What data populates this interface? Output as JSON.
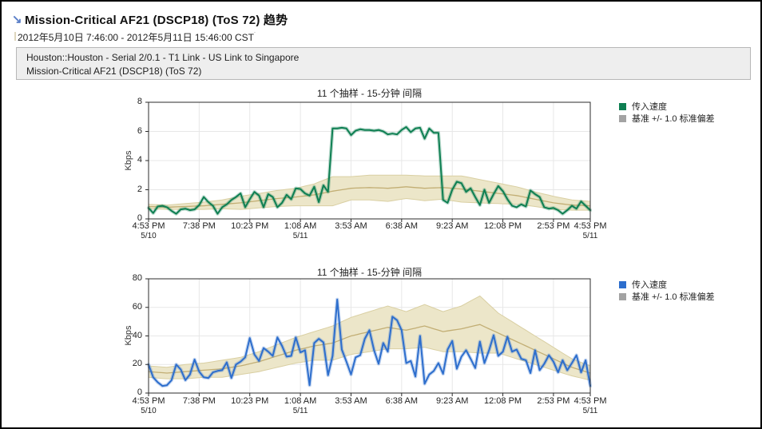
{
  "window": {
    "background": "#ffffff",
    "border_color": "#000000"
  },
  "header": {
    "arrow_icon": "↘",
    "title": "Mission-Critical AF21 (DSCP18) (ToS 72) 趋势",
    "date_range": "2012年5月10日 7:46:00 - 2012年5月11日 15:46:00 CST",
    "date_range_superscript": "˙",
    "source_line1": "Houston::Houston - Serial 2/0.1 - T1 Link - US Link to Singapore",
    "source_line2": "Mission-Critical AF21 (DSCP18) (ToS 72)"
  },
  "colors": {
    "green_line": "#0e7f52",
    "blue_line": "#2d6ecd",
    "baseline_band_fill": "#ece6c9",
    "baseline_band_edge": "#d9cfa2",
    "baseline_mid_line": "#c2ae74",
    "legend_gray": "#a3a3a3",
    "grid": "#e7e7e7",
    "axis": "#2b2b2b"
  },
  "chart_data": [
    {
      "type": "line",
      "title": "11 个抽样 - 15-分钟 间隔",
      "ylabel": "Kbps",
      "ylim": [
        0,
        8
      ],
      "y_ticks": [
        0,
        2,
        4,
        6,
        8
      ],
      "total_minutes": 1440,
      "sample_interval_minutes": 15,
      "x_ticks": {
        "minutes": [
          0,
          165,
          330,
          495,
          660,
          825,
          990,
          1155,
          1320,
          1440
        ],
        "labels": [
          "4:53 PM",
          "7:38 PM",
          "10:23 PM",
          "1:08 AM",
          "3:53 AM",
          "6:38 AM",
          "9:23 AM",
          "12:08 PM",
          "2:53 PM",
          "4:53 PM"
        ],
        "dates": [
          "5/10",
          "",
          "",
          "5/11",
          "",
          "",
          "",
          "",
          "",
          "5/11"
        ]
      },
      "legend": [
        {
          "label": "传入速度",
          "color": "#0e7f52"
        },
        {
          "label": "基准 +/- 1.0 标准偏差",
          "color": "#a3a3a3"
        }
      ],
      "series": [
        {
          "name": "传入速度",
          "color": "#0e7f52",
          "unit": "Kbps",
          "values": [
            0.75,
            0.4,
            0.85,
            0.9,
            0.8,
            0.55,
            0.35,
            0.65,
            0.7,
            0.6,
            0.65,
            0.95,
            1.5,
            1.15,
            0.9,
            0.35,
            0.8,
            1.0,
            1.3,
            1.5,
            1.75,
            0.8,
            1.35,
            1.85,
            1.6,
            0.8,
            1.7,
            1.5,
            0.8,
            1.1,
            1.65,
            1.35,
            2.1,
            2.05,
            1.75,
            1.6,
            2.2,
            1.15,
            2.3,
            1.85,
            6.2,
            6.2,
            6.25,
            6.2,
            5.75,
            6.05,
            6.15,
            6.1,
            6.1,
            6.05,
            6.1,
            6.0,
            5.8,
            5.85,
            5.8,
            6.1,
            6.3,
            5.95,
            6.2,
            6.25,
            5.5,
            6.2,
            5.9,
            5.9,
            1.3,
            1.1,
            2.0,
            2.55,
            2.45,
            1.85,
            2.1,
            1.5,
            0.95,
            2.0,
            1.1,
            1.7,
            2.25,
            1.9,
            1.35,
            0.9,
            0.8,
            1.0,
            0.85,
            1.95,
            1.7,
            1.5,
            0.8,
            0.7,
            0.75,
            0.6,
            0.35,
            0.6,
            0.9,
            0.7,
            1.2,
            0.9,
            0.6
          ]
        }
      ],
      "baseline": {
        "name": "基准",
        "sigma_multiplier": 1.0,
        "mid": [
          0.85,
          0.8,
          0.85,
          0.9,
          1.0,
          1.1,
          1.25,
          1.4,
          1.5,
          1.65,
          1.9,
          2.1,
          2.15,
          2.1,
          2.2,
          2.1,
          2.15,
          2.05,
          1.9,
          1.75,
          1.6,
          1.35,
          1.1,
          0.95,
          0.9
        ],
        "sigma": [
          0.15,
          0.15,
          0.2,
          0.25,
          0.3,
          0.45,
          0.5,
          0.55,
          0.6,
          0.75,
          1.0,
          0.8,
          0.85,
          0.9,
          0.8,
          0.85,
          0.8,
          0.9,
          0.8,
          0.7,
          0.6,
          0.5,
          0.45,
          0.35,
          0.3
        ]
      }
    },
    {
      "type": "line",
      "title": "11 个抽样 - 15-分钟 间隔",
      "ylabel": "Kbps",
      "ylim": [
        0,
        80
      ],
      "y_ticks": [
        0,
        20,
        40,
        60,
        80
      ],
      "total_minutes": 1440,
      "sample_interval_minutes": 15,
      "x_ticks": {
        "minutes": [
          0,
          165,
          330,
          495,
          660,
          825,
          990,
          1155,
          1320,
          1440
        ],
        "labels": [
          "4:53 PM",
          "7:38 PM",
          "10:23 PM",
          "1:08 AM",
          "3:53 AM",
          "6:38 AM",
          "9:23 AM",
          "12:08 PM",
          "2:53 PM",
          "4:53 PM"
        ],
        "dates": [
          "5/10",
          "",
          "",
          "5/11",
          "",
          "",
          "",
          "",
          "",
          "5/11"
        ]
      },
      "legend": [
        {
          "label": "传入速度",
          "color": "#2d6ecd"
        },
        {
          "label": "基准 +/- 1.0 标准偏差",
          "color": "#a3a3a3"
        }
      ],
      "series": [
        {
          "name": "传入速度",
          "color": "#2d6ecd",
          "unit": "Kbps",
          "values": [
            20,
            11,
            7.5,
            5,
            5.5,
            9,
            20,
            16.5,
            9,
            13,
            23.5,
            15,
            11,
            10.5,
            14.5,
            15.5,
            16,
            21.5,
            10.5,
            20,
            22,
            25,
            38.5,
            27,
            22.5,
            31.5,
            29,
            26,
            39,
            33,
            25.5,
            26,
            39,
            28.5,
            30,
            5.5,
            35,
            38,
            35.5,
            12.5,
            26,
            65.5,
            30.5,
            22,
            13,
            25,
            26.5,
            38,
            44,
            30,
            20.5,
            35,
            29,
            53.5,
            51,
            44,
            21,
            22.5,
            11.5,
            40,
            6.5,
            13,
            15.5,
            21,
            13.5,
            30.5,
            36.5,
            17,
            25.5,
            30,
            24,
            17.5,
            36,
            21,
            30,
            40.5,
            26,
            29,
            39.5,
            29,
            30.5,
            24,
            23,
            14,
            30,
            16,
            20.5,
            26.5,
            22,
            14.5,
            23,
            16,
            21,
            26.5,
            14.5,
            23,
            5
          ]
        }
      ],
      "baseline": {
        "name": "基准",
        "sigma_multiplier": 1.0,
        "mid": [
          15,
          14,
          15,
          16,
          17,
          19,
          22,
          26,
          30,
          33,
          35,
          40,
          43,
          46,
          44,
          47,
          43,
          45,
          48,
          42,
          36,
          30,
          24,
          18,
          14
        ],
        "sigma": [
          4,
          4,
          5,
          5,
          6,
          6,
          7,
          8,
          9,
          10,
          12,
          13,
          14,
          15,
          13,
          15,
          14,
          16,
          20,
          14,
          12,
          10,
          8,
          6,
          5
        ]
      }
    }
  ]
}
